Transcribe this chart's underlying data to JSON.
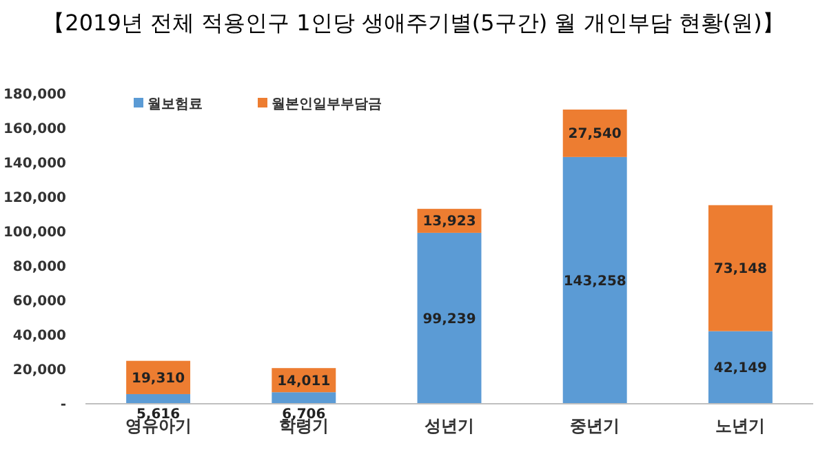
{
  "chart_data": {
    "type": "bar",
    "title": "【2019년 전체 적용인구 1인당 생애주기별(5구간) 월 개인부담 현황(원)】",
    "categories": [
      "영유아기",
      "학령기",
      "성년기",
      "중년기",
      "노년기"
    ],
    "stacked": true,
    "legend": "top left",
    "grid": false,
    "ylim": [
      0,
      180000
    ],
    "yticks": [
      {
        "value": 0,
        "label": "-"
      },
      {
        "value": 20000,
        "label": "20,000"
      },
      {
        "value": 40000,
        "label": "40,000"
      },
      {
        "value": 60000,
        "label": "60,000"
      },
      {
        "value": 80000,
        "label": "80,000"
      },
      {
        "value": 100000,
        "label": "100,000"
      },
      {
        "value": 120000,
        "label": "120,000"
      },
      {
        "value": 140000,
        "label": "140,000"
      },
      {
        "value": 160000,
        "label": "160,000"
      },
      {
        "value": 180000,
        "label": "180,000"
      }
    ],
    "series": [
      {
        "name": "월보험료",
        "color": "#5b9bd5",
        "values": [
          5616,
          6706,
          99239,
          143258,
          42149
        ],
        "value_labels": [
          "5,616",
          "6,706",
          "99,239",
          "143,258",
          "42,149"
        ]
      },
      {
        "name": "월본인일부부담금",
        "color": "#ed7d31",
        "values": [
          19310,
          14011,
          13923,
          27540,
          73148
        ],
        "value_labels": [
          "19,310",
          "14,011",
          "13,923",
          "27,540",
          "73,148"
        ]
      }
    ]
  }
}
